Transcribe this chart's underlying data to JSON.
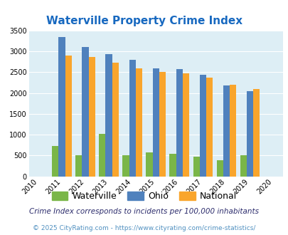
{
  "title": "Waterville Property Crime Index",
  "all_years": [
    2010,
    2011,
    2012,
    2013,
    2014,
    2015,
    2016,
    2017,
    2018,
    2019,
    2020
  ],
  "bar_years": [
    2011,
    2012,
    2013,
    2014,
    2015,
    2016,
    2017,
    2018,
    2019
  ],
  "waterville": [
    720,
    500,
    1020,
    500,
    565,
    540,
    470,
    390,
    505
  ],
  "ohio": [
    3340,
    3100,
    2940,
    2800,
    2600,
    2580,
    2430,
    2175,
    2050
  ],
  "national": [
    2900,
    2860,
    2720,
    2590,
    2500,
    2480,
    2375,
    2200,
    2100
  ],
  "waterville_color": "#7ab648",
  "ohio_color": "#4f81bd",
  "national_color": "#f9a52c",
  "bg_color": "#ddeef5",
  "ylim": [
    0,
    3500
  ],
  "yticks": [
    0,
    500,
    1000,
    1500,
    2000,
    2500,
    3000,
    3500
  ],
  "footnote1": "Crime Index corresponds to incidents per 100,000 inhabitants",
  "footnote2": "© 2025 CityRating.com - https://www.cityrating.com/crime-statistics/",
  "title_color": "#1869c0",
  "footnote1_color": "#2c2c6c",
  "footnote2_color": "#5090c0",
  "bar_width": 0.28,
  "legend_labels": [
    "Waterville",
    "Ohio",
    "National"
  ]
}
